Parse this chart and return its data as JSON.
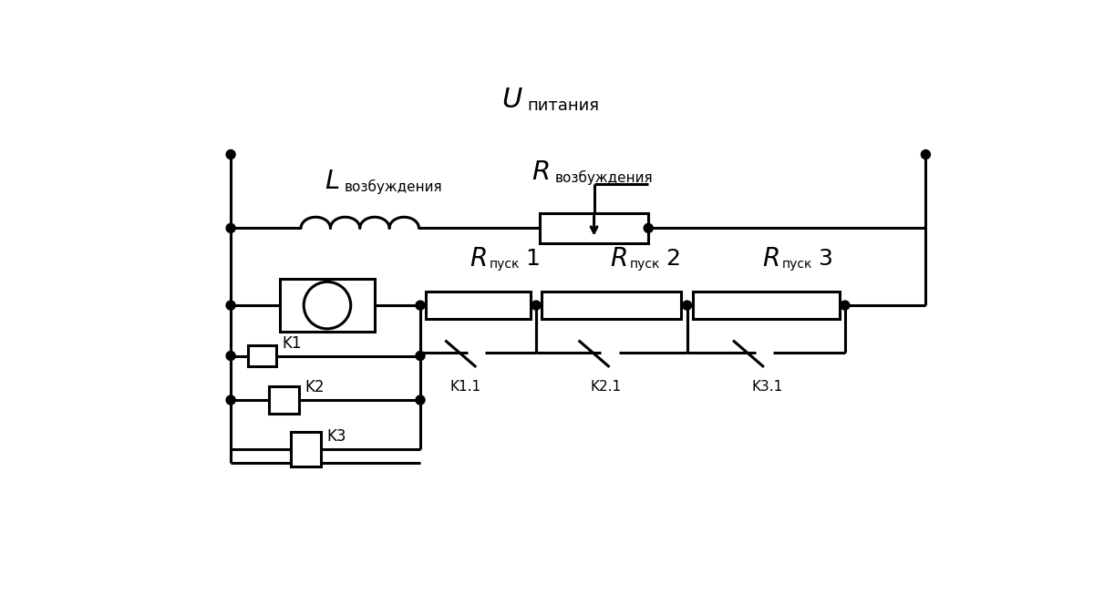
{
  "title_U": "U",
  "title_sub": "питания",
  "label_L": "L",
  "label_L_sub": "возбуждения",
  "label_R": "R",
  "label_R_sub": "возбуждения",
  "label_Rpusk": "R",
  "label_pusk_sub1": "пуск",
  "label_K1": "K1",
  "label_K2": "K2",
  "label_K3": "K3",
  "label_K11": "K1.1",
  "label_K21": "K2.1",
  "label_K31": "K3.1",
  "bg_color": "#ffffff",
  "line_color": "#000000",
  "lw": 2.2
}
